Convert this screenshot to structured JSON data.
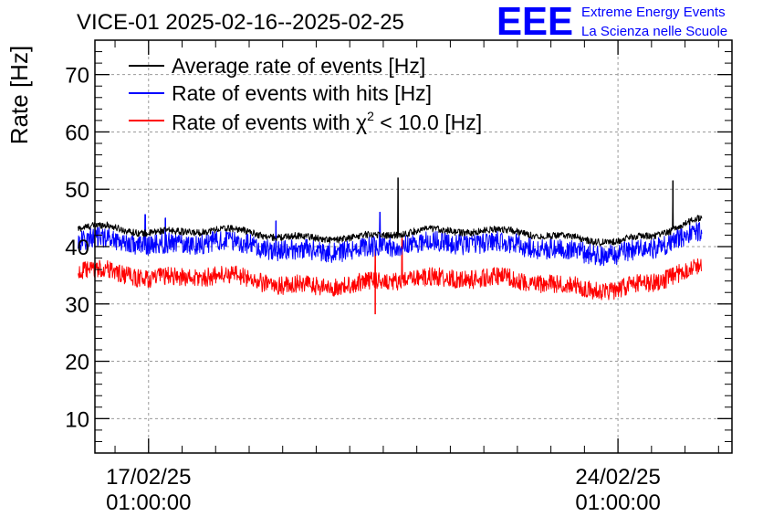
{
  "chart_data": {
    "type": "line",
    "title": "VICE-01 2025-02-16--2025-02-25",
    "xlabel": "",
    "ylabel": "Rate [Hz]",
    "ylim": [
      4,
      76
    ],
    "yticks": [
      10,
      20,
      30,
      40,
      50,
      60,
      70
    ],
    "xlim_days": [
      -0.8,
      8.7
    ],
    "xticks": [
      {
        "day": 0,
        "date": "17/02/25",
        "time": "01:00:00"
      },
      {
        "day": 7,
        "date": "24/02/25",
        "time": "01:00:00"
      }
    ],
    "x_start_day": -1.05,
    "x_end_day": 8.25,
    "grid": true,
    "legend_position": "top-left",
    "series": [
      {
        "name": "Average rate of events [Hz]",
        "legend_text": "Average rate of events [Hz]",
        "color": "#000000",
        "noise": 0.6,
        "x_days": [
          -1.05,
          -0.6,
          -0.3,
          0.0,
          0.5,
          1.0,
          1.5,
          2.0,
          2.5,
          3.0,
          3.5,
          4.0,
          4.5,
          5.0,
          5.5,
          6.0,
          6.5,
          7.0,
          7.5,
          8.0,
          8.25
        ],
        "y": [
          43.2,
          43.5,
          43.0,
          42.3,
          42.6,
          43.0,
          42.6,
          41.6,
          41.5,
          41.5,
          42.0,
          42.8,
          42.7,
          42.8,
          42.6,
          41.9,
          41.2,
          41.0,
          41.8,
          44.0,
          44.8
        ],
        "spikes": [
          {
            "day": 3.72,
            "value": 52.0
          },
          {
            "day": 7.82,
            "value": 51.5
          }
        ]
      },
      {
        "name": "Rate of events with hits [Hz]",
        "legend_text": "Rate of events with hits [Hz]",
        "color": "#0000ff",
        "noise": 1.8,
        "x_days": [
          -1.05,
          -0.6,
          -0.3,
          0.0,
          0.5,
          1.0,
          1.5,
          2.0,
          2.5,
          3.0,
          3.5,
          4.0,
          4.5,
          5.0,
          5.5,
          6.0,
          6.5,
          7.0,
          7.5,
          8.0,
          8.25
        ],
        "y": [
          41.0,
          41.4,
          41.0,
          40.0,
          40.5,
          41.0,
          40.4,
          39.2,
          39.3,
          39.3,
          40.0,
          40.7,
          40.6,
          40.7,
          40.4,
          39.6,
          38.9,
          38.7,
          39.6,
          42.0,
          42.5
        ],
        "spikes": [
          {
            "day": -0.05,
            "value": 45.6
          },
          {
            "day": 3.45,
            "value": 46.0
          },
          {
            "day": 1.9,
            "value": 44.5
          },
          {
            "day": 0.25,
            "value": 45.0
          }
        ]
      },
      {
        "name": "Rate of events with χ² < 10.0 [Hz]",
        "legend_prefix": "Rate of events with χ",
        "legend_sup": "2",
        "legend_suffix": " < 10.0 [Hz]",
        "color": "#ff0000",
        "noise": 1.6,
        "x_days": [
          -1.05,
          -0.6,
          -0.3,
          0.0,
          0.5,
          1.0,
          1.5,
          2.0,
          2.5,
          3.0,
          3.5,
          4.0,
          4.5,
          5.0,
          5.5,
          6.0,
          6.5,
          7.0,
          7.5,
          8.0,
          8.25
        ],
        "y": [
          35.6,
          35.8,
          35.2,
          34.3,
          34.7,
          35.0,
          34.5,
          33.2,
          33.1,
          33.3,
          34.0,
          34.5,
          34.4,
          34.6,
          34.2,
          33.5,
          32.7,
          32.5,
          33.7,
          35.9,
          36.5
        ],
        "spikes": [
          {
            "day": 3.38,
            "value": 28.2
          },
          {
            "day": 3.38,
            "value": 39.5
          },
          {
            "day": 3.78,
            "value": 41.5
          }
        ]
      }
    ]
  },
  "logo": {
    "mark": "EEE",
    "line1": "Extreme Energy Events",
    "line2": "La Scienza nelle Scuole",
    "color": "#0000ff"
  }
}
